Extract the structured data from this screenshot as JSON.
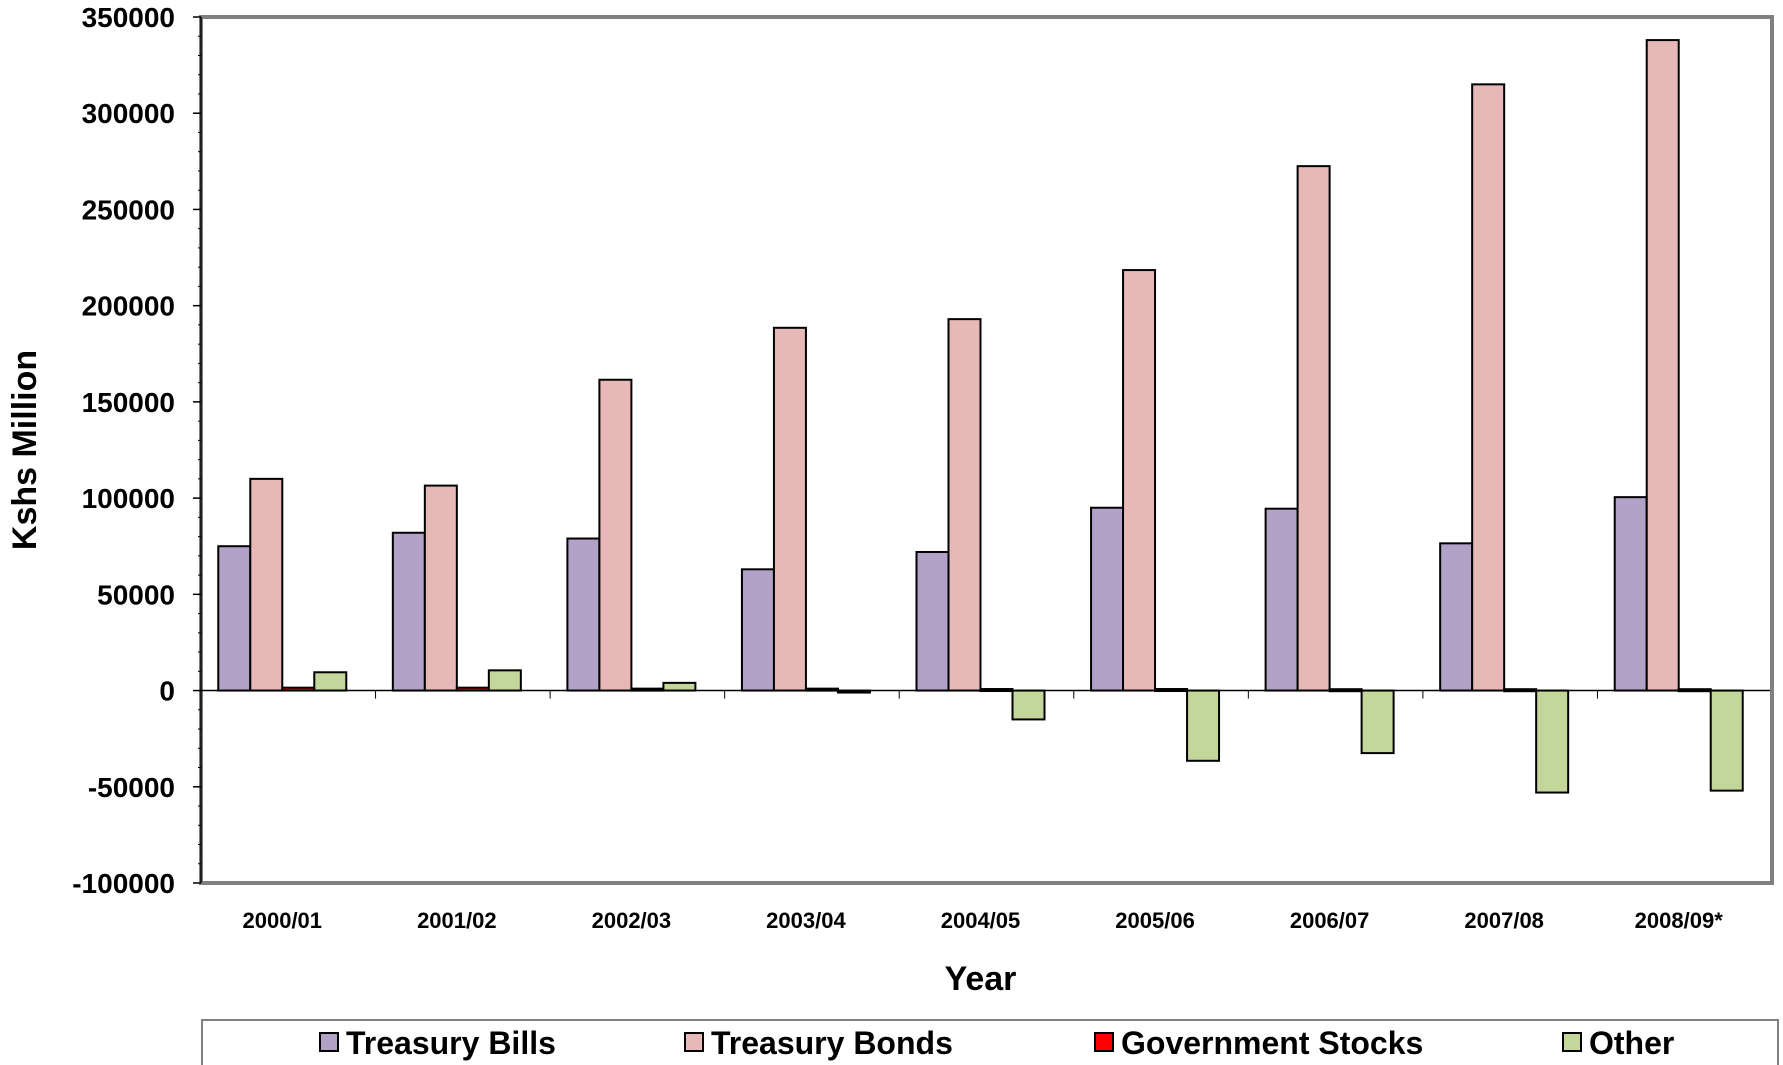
{
  "chart_data": {
    "type": "bar",
    "title": "",
    "xlabel": "Year",
    "ylabel": "Kshs Million",
    "ylim": [
      -100000,
      350000
    ],
    "yticks": [
      350000,
      300000,
      250000,
      200000,
      150000,
      100000,
      50000,
      0,
      -50000,
      -100000
    ],
    "ytick_labels": [
      "350000",
      "300000",
      "250000",
      "200000",
      "150000",
      "100000",
      "50000",
      "0",
      "-50000",
      "-100000"
    ],
    "categories": [
      "2000/01",
      "2001/02",
      "2002/03",
      "2003/04",
      "2004/05",
      "2005/06",
      "2006/07",
      "2007/08",
      "2008/09*"
    ],
    "series": [
      {
        "name": "Treasury Bills",
        "color": "#b3a2c8",
        "values": [
          75000,
          82000,
          79000,
          63000,
          72000,
          95000,
          94500,
          76500,
          100500
        ]
      },
      {
        "name": "Treasury Bonds",
        "color": "#e6b9b8",
        "values": [
          110000,
          106500,
          161500,
          188500,
          193000,
          218500,
          272500,
          315000,
          338000
        ]
      },
      {
        "name": "Government Stocks",
        "color": "#ff0000",
        "values": [
          1500,
          1500,
          1000,
          1000,
          800,
          800,
          700,
          700,
          700
        ]
      },
      {
        "name": "Other",
        "color": "#c4d79b",
        "values": [
          9500,
          10500,
          4000,
          -500,
          -15000,
          -36500,
          -32500,
          -53000,
          -52000
        ]
      }
    ],
    "grid": false,
    "legend_position": "bottom"
  }
}
